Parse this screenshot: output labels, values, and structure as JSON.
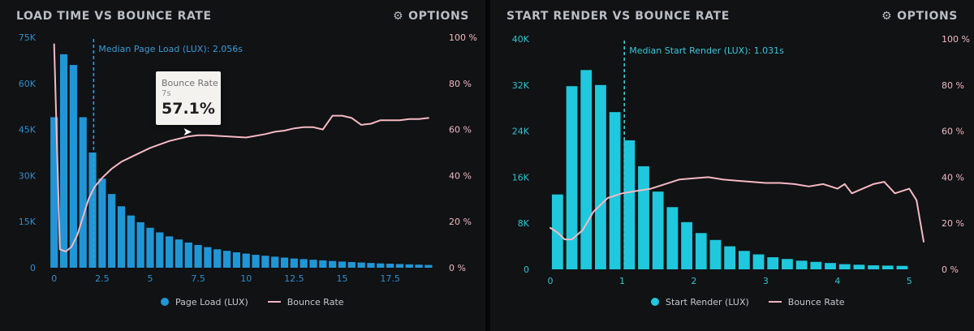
{
  "colors": {
    "bar_left": "#2196d6",
    "bar_right": "#1fc8dc",
    "bounce_line": "#f6b9c2",
    "axis_left_text": "#2f8fd0",
    "axis_right_left_text": "#2ec4d6",
    "axis_pink_text": "#f4b8c0",
    "median_line_left": "#3a9bd8",
    "median_line_right": "#3ec8da"
  },
  "panels": [
    {
      "title": "LOAD TIME VS BOUNCE RATE",
      "options_label": "OPTIONS",
      "options_icon": "gear-icon",
      "legend": {
        "bars": "Page Load (LUX)",
        "line": "Bounce Rate"
      },
      "tooltip": {
        "title": "Bounce Rate",
        "subtitle": "7s",
        "value": "57.1%"
      }
    },
    {
      "title": "START RENDER VS BOUNCE RATE",
      "options_label": "OPTIONS",
      "options_icon": "gear-icon",
      "legend": {
        "bars": "Start Render (LUX)",
        "line": "Bounce Rate"
      }
    }
  ],
  "chart_data": [
    {
      "type": "bar",
      "title": "LOAD TIME VS BOUNCE RATE",
      "x_start": 0,
      "x_step": 0.5,
      "xlim": [
        -0.2,
        19.8
      ],
      "x_ticks": [
        0,
        2.5,
        5,
        7.5,
        10,
        12.5,
        15,
        17.5
      ],
      "x_tick_labels": [
        "0",
        "2.5",
        "5",
        "7.5",
        "10",
        "12.5",
        "15",
        "17.5"
      ],
      "ylim_left": [
        0,
        75000
      ],
      "y_ticks_left": [
        0,
        15000,
        30000,
        45000,
        60000,
        75000
      ],
      "y_tick_labels_left": [
        "0",
        "15K",
        "30K",
        "45K",
        "60K",
        "75K"
      ],
      "ylim_right": [
        0,
        100
      ],
      "y_ticks_right": [
        0,
        20,
        40,
        60,
        80,
        100
      ],
      "y_tick_labels_right": [
        "0 %",
        "20 %",
        "40 %",
        "60 %",
        "80 %",
        "100 %"
      ],
      "median": {
        "x": 2.056,
        "label": "Median Page Load (LUX): 2.056s"
      },
      "series": [
        {
          "name": "Page Load (LUX)",
          "values": [
            49000,
            69500,
            66000,
            49000,
            37500,
            29000,
            24000,
            20000,
            17000,
            14800,
            13000,
            11500,
            10200,
            9200,
            8200,
            7400,
            6700,
            6000,
            5500,
            5000,
            4600,
            4200,
            3900,
            3600,
            3300,
            3000,
            2800,
            2600,
            2400,
            2200,
            2000,
            1850,
            1700,
            1550,
            1400,
            1300,
            1200,
            1100,
            1000,
            900
          ]
        },
        {
          "name": "Bounce Rate",
          "axis": "right",
          "x": [
            0,
            0.3,
            0.6,
            0.9,
            1.2,
            1.5,
            1.8,
            2.1,
            2.5,
            3,
            3.5,
            4,
            5,
            6,
            7,
            7.5,
            8,
            9,
            10,
            11,
            11.5,
            12,
            12.5,
            13,
            13.5,
            14,
            14.5,
            15,
            15.5,
            16,
            16.5,
            17,
            17.5,
            18,
            18.5,
            19,
            19.5
          ],
          "values": [
            97,
            8,
            7,
            9,
            14,
            22,
            30,
            35,
            39,
            43,
            46,
            48,
            52,
            55,
            57,
            57.5,
            57.5,
            57,
            56.5,
            58,
            59,
            59.5,
            60.5,
            61,
            61,
            60,
            66,
            66,
            65,
            62,
            62.5,
            64,
            64,
            64,
            64.5,
            64.5,
            65
          ]
        }
      ]
    },
    {
      "type": "bar",
      "title": "START RENDER VS BOUNCE RATE",
      "x_start": 0.1,
      "x_step": 0.2,
      "xlim": [
        0,
        5.2
      ],
      "x_ticks": [
        0,
        1,
        2,
        3,
        4,
        5
      ],
      "x_tick_labels": [
        "0",
        "1",
        "2",
        "3",
        "4",
        "5"
      ],
      "ylim_left": [
        0,
        40000
      ],
      "y_ticks_left": [
        0,
        8000,
        16000,
        24000,
        32000,
        40000
      ],
      "y_tick_labels_left": [
        "0",
        "8K",
        "16K",
        "24K",
        "32K",
        "40K"
      ],
      "ylim_right": [
        0,
        100
      ],
      "y_ticks_right": [
        0,
        20,
        40,
        60,
        80,
        100
      ],
      "y_tick_labels_right": [
        "0 %",
        "20 %",
        "40 %",
        "60 %",
        "80 %",
        "100 %"
      ],
      "median": {
        "x": 1.031,
        "label": "Median Start Render (LUX): 1.031s"
      },
      "series": [
        {
          "name": "Start Render (LUX)",
          "values": [
            13000,
            31800,
            34600,
            32000,
            27300,
            22400,
            17900,
            13500,
            10800,
            8200,
            6300,
            5100,
            4000,
            3200,
            2600,
            2100,
            1800,
            1500,
            1300,
            1100,
            900,
            800,
            700,
            650,
            600
          ]
        },
        {
          "name": "Bounce Rate",
          "axis": "right",
          "x": [
            0,
            0.1,
            0.2,
            0.3,
            0.45,
            0.6,
            0.8,
            1.0,
            1.2,
            1.4,
            1.6,
            1.8,
            2.0,
            2.2,
            2.4,
            2.6,
            2.8,
            3.0,
            3.2,
            3.4,
            3.6,
            3.8,
            4.0,
            4.1,
            4.2,
            4.35,
            4.5,
            4.65,
            4.8,
            5.0,
            5.1,
            5.2
          ],
          "values": [
            18,
            16,
            13,
            13,
            17,
            25,
            31,
            33,
            34,
            35,
            37,
            39,
            39.5,
            40,
            39,
            38.5,
            38,
            37.5,
            37.5,
            37,
            36,
            37,
            35,
            37,
            33,
            35,
            37,
            38,
            33,
            35,
            30,
            12
          ]
        }
      ]
    }
  ]
}
